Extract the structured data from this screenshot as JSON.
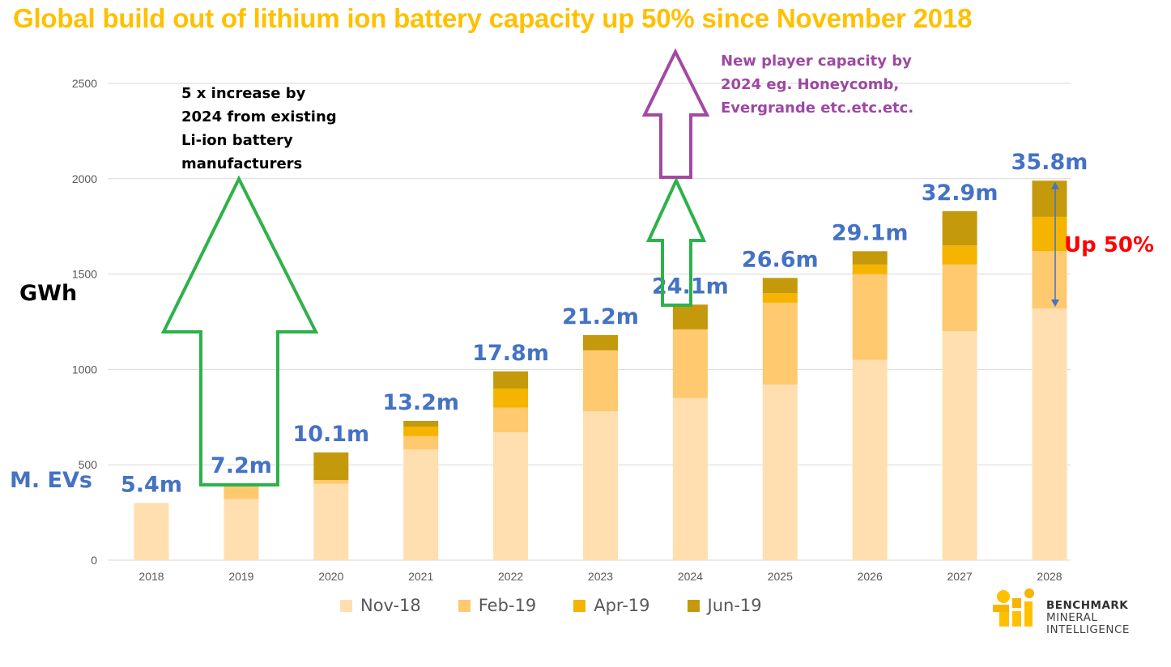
{
  "title": "Global build out of lithium ion battery capacity up 50% since November 2018",
  "ylabel": "GWh",
  "evs_label": "M. EVs",
  "notes": {
    "green": "5 x increase by 2024 from existing Li-ion battery manufacturers",
    "purple": "New player capacity by 2024 eg. Honeycomb, Evergrande etc.etc.etc.",
    "up": "Up 50%"
  },
  "colors": {
    "Nov-18": "#FFDFAF",
    "Feb-19": "#FFC96F",
    "Apr-19": "#F4B400",
    "Jun-19": "#C49A0C",
    "ev_label": "#4472C4",
    "green_arrow": "#2DB24A",
    "purple_arrow": "#A349A4",
    "blue_arrow": "#4472C4"
  },
  "logo": {
    "line1": "BENCHMARK",
    "line2": "MINERAL",
    "line3": "INTELLIGENCE"
  },
  "chart_data": {
    "type": "bar",
    "stacked": true,
    "categories": [
      "2018",
      "2019",
      "2020",
      "2021",
      "2022",
      "2023",
      "2024",
      "2025",
      "2026",
      "2027",
      "2028"
    ],
    "series": [
      {
        "name": "Nov-18",
        "values": [
          300,
          320,
          400,
          580,
          670,
          780,
          850,
          920,
          1050,
          1200,
          1320
        ]
      },
      {
        "name": "Feb-19",
        "values": [
          0,
          80,
          20,
          70,
          130,
          320,
          360,
          430,
          450,
          350,
          300
        ]
      },
      {
        "name": "Apr-19",
        "values": [
          0,
          0,
          0,
          50,
          100,
          0,
          0,
          50,
          50,
          100,
          180
        ]
      },
      {
        "name": "Jun-19",
        "values": [
          0,
          0,
          145,
          30,
          90,
          80,
          130,
          80,
          70,
          180,
          190
        ]
      }
    ],
    "ev_labels": [
      "5.4m",
      "7.2m",
      "10.1m",
      "13.2m",
      "17.8m",
      "21.2m",
      "24.1m",
      "26.6m",
      "29.1m",
      "32.9m",
      "35.8m"
    ],
    "yticks": [
      0,
      500,
      1000,
      1500,
      2000,
      2500
    ],
    "ylim": [
      0,
      2500
    ],
    "grid": true,
    "legend_position": "bottom"
  }
}
